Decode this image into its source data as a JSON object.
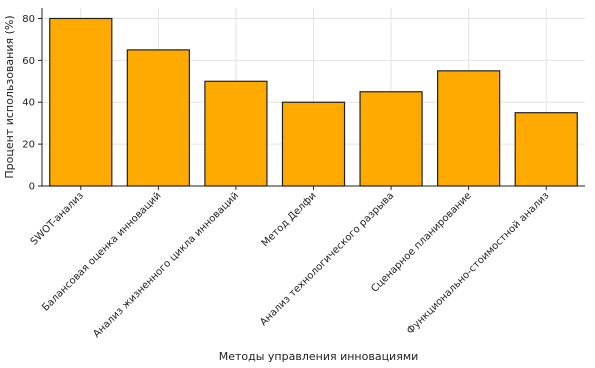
{
  "chart_data": {
    "type": "bar",
    "title": "",
    "xlabel": "Методы управления инновациями",
    "ylabel": "Процент использования (%)",
    "categories": [
      "SWOT-анализ",
      "Балансовая оценка инноваций",
      "Анализ жизненного цикла инноваций",
      "Метод Делфи",
      "Анализ технологического разрыва",
      "Сценарное планирование",
      "Функционально-стоимостной анализ"
    ],
    "values": [
      80,
      65,
      50,
      40,
      45,
      55,
      35
    ],
    "ylim": [
      0,
      85
    ],
    "yticks": [
      0,
      20,
      40,
      60,
      80
    ],
    "grid": true,
    "bar_color": "#FFAA00",
    "bar_edge_color": "#222222",
    "grid_color": "#E3E3E3"
  }
}
